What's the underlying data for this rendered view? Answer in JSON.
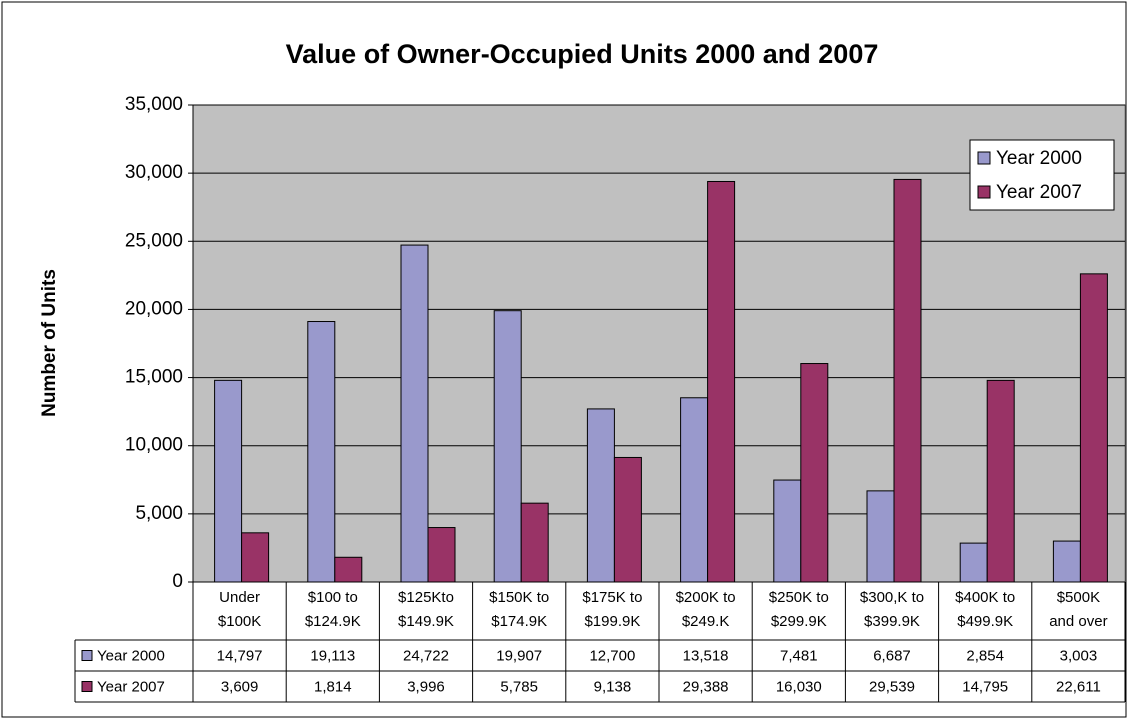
{
  "chart_data": {
    "type": "bar",
    "title": "Value of Owner-Occupied Units 2000 and 2007",
    "y_label": "Number of Units",
    "categories": [
      "Under\n$100K",
      "$100 to\n$124.9K",
      "$125Kto\n$149.9K",
      "$150K to\n$174.9K",
      "$175K to\n$199.9K",
      "$200K to\n$249.K",
      "$250K to\n$299.9K",
      "$300,K to\n$399.9K",
      "$400K to\n$499.9K",
      "$500K\nand over"
    ],
    "series": [
      {
        "name": "Year 2000",
        "color": "#9999cc",
        "values": [
          14797,
          19113,
          24722,
          19907,
          12700,
          13518,
          7481,
          6687,
          2854,
          3003
        ],
        "value_labels": [
          "14,797",
          "19,113",
          "24,722",
          "19,907",
          "12,700",
          "13,518",
          "7,481",
          "6,687",
          "2,854",
          "3,003"
        ]
      },
      {
        "name": "Year 2007",
        "color": "#993366",
        "values": [
          3609,
          1814,
          3996,
          5785,
          9138,
          29388,
          16030,
          29539,
          14795,
          22611
        ],
        "value_labels": [
          "3,609",
          "1,814",
          "3,996",
          "5,785",
          "9,138",
          "29,388",
          "16,030",
          "29,539",
          "14,795",
          "22,611"
        ]
      }
    ],
    "ylim": [
      0,
      35000
    ],
    "yticks": [
      0,
      {
        "value": 5000,
        "label": "5,000"
      },
      {
        "value": 10000,
        "label": "10,000"
      },
      {
        "value": 15000,
        "label": "15,000"
      },
      {
        "value": 20000,
        "label": "20,000"
      },
      {
        "value": 25000,
        "label": "25,000"
      },
      {
        "value": 30000,
        "label": "30,000"
      },
      {
        "value": 35000,
        "label": "35,000"
      }
    ],
    "grid": true,
    "legend": "upper right",
    "plot_background": "#c0c0c0"
  }
}
